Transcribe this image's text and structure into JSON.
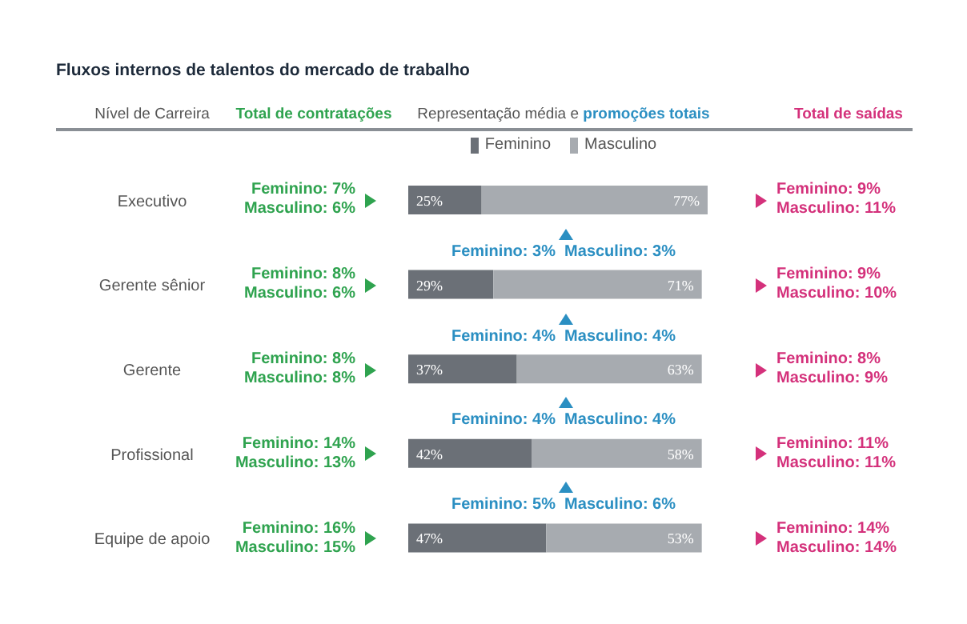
{
  "chart_data": {
    "type": "bar",
    "orientation": "horizontal",
    "stacked": true,
    "title": "Fluxos internos de talentos do mercado de trabalho",
    "ylabel": "Nível de Carreira",
    "categories": [
      "Executivo",
      "Gerente sênior",
      "Gerente",
      "Profissional",
      "Equipe de apoio"
    ],
    "series": [
      {
        "name": "Feminino",
        "color": "#6b7077",
        "values": [
          25,
          29,
          37,
          42,
          47
        ],
        "value_labels": [
          "25%",
          "29%",
          "37%",
          "42%",
          "47%"
        ]
      },
      {
        "name": "Masculino",
        "color": "#a7abb0",
        "values": [
          77,
          71,
          63,
          58,
          53
        ],
        "value_labels": [
          "77%",
          "71%",
          "63%",
          "58%",
          "53%"
        ]
      }
    ],
    "legend": "top",
    "annotations": [
      "Total de contratações",
      "Representação média e",
      "promoções totais",
      "Total de saídas",
      "Feminino: 7%",
      "Masculino: 6%",
      "Feminino: 8%",
      "Masculino: 6%",
      "Feminino: 8%",
      "Masculino: 8%",
      "Feminino: 14%",
      "Masculino: 13%",
      "Feminino: 16%",
      "Masculino: 15%",
      "Feminino: 3%",
      "Masculino: 3%",
      "Feminino: 4%",
      "Masculino: 4%",
      "Feminino: 4%",
      "Masculino: 4%",
      "Feminino: 5%",
      "Masculino: 6%",
      "Feminino: 9%",
      "Masculino: 11%",
      "Feminino: 9%",
      "Masculino: 10%",
      "Feminino: 8%",
      "Masculino: 9%",
      "Feminino: 11%",
      "Masculino: 11%",
      "Feminino: 14%",
      "Masculino: 14%"
    ]
  }
}
